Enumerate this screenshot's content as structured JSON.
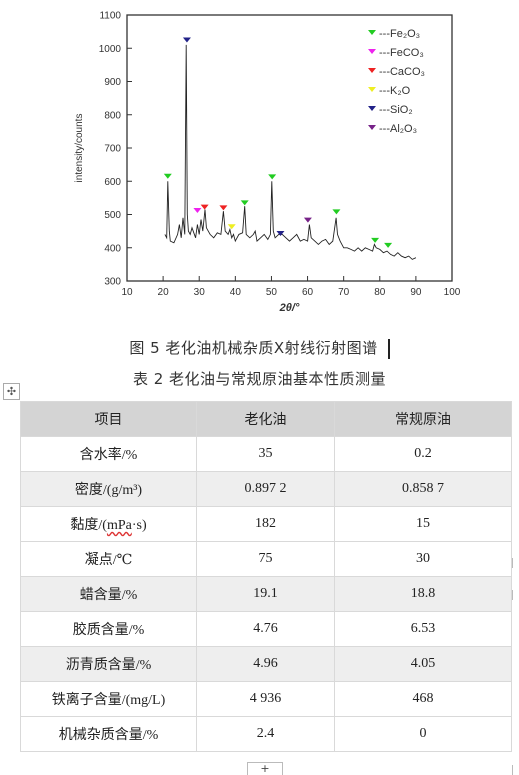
{
  "chart_data": {
    "type": "line",
    "xlabel": "2θ/°",
    "ylabel": "intensity/counts",
    "xlim": [
      10,
      100
    ],
    "ylim": [
      300,
      1100
    ],
    "xticks": [
      10,
      20,
      30,
      40,
      50,
      60,
      70,
      80,
      90,
      100
    ],
    "yticks": [
      300,
      400,
      500,
      600,
      700,
      800,
      900,
      1000,
      1100
    ],
    "grid": false,
    "legend_position": "top-right",
    "legend": [
      {
        "label": "---Fe₂O₃",
        "color": "#22cc22"
      },
      {
        "label": "---FeCO₃",
        "color": "#ee22ee"
      },
      {
        "label": "---CaCO₃",
        "color": "#ee2222"
      },
      {
        "label": "---K₂O",
        "color": "#eeee22"
      },
      {
        "label": "---SiO₂",
        "color": "#222288"
      },
      {
        "label": "---Al₂O₃",
        "color": "#772288"
      }
    ],
    "series": [
      {
        "x": [
          20.5,
          21,
          21.3,
          21.7,
          22,
          23,
          24,
          24.5,
          25,
          25.5,
          26,
          26.4,
          26.7,
          27,
          27.5,
          28,
          29,
          29.5,
          30,
          30.5,
          31,
          31.6,
          32,
          33,
          34,
          35,
          36,
          36.7,
          37.2,
          38,
          38.5,
          39,
          39.5,
          40,
          41,
          42,
          42.6,
          43,
          44,
          45,
          45.5,
          46,
          47,
          48,
          49,
          49.7,
          50.1,
          50.5,
          51,
          52,
          53,
          54,
          55,
          56,
          57,
          58,
          59,
          60,
          60.5,
          61,
          62,
          63,
          64,
          65,
          66,
          67,
          67.9,
          68.3,
          69,
          70,
          71,
          72,
          73,
          74,
          75,
          76,
          77,
          78,
          78.5,
          79,
          80,
          81,
          82,
          83,
          84,
          85,
          86,
          87,
          88,
          89,
          90
        ],
        "y": [
          440,
          430,
          600,
          450,
          420,
          415,
          440,
          470,
          430,
          490,
          440,
          1010,
          500,
          450,
          440,
          460,
          430,
          470,
          440,
          485,
          450,
          515,
          460,
          440,
          430,
          445,
          440,
          510,
          450,
          440,
          455,
          430,
          440,
          420,
          440,
          445,
          525,
          440,
          430,
          440,
          450,
          420,
          430,
          440,
          425,
          440,
          600,
          450,
          430,
          440,
          440,
          430,
          420,
          430,
          440,
          420,
          425,
          420,
          470,
          430,
          420,
          410,
          420,
          425,
          410,
          420,
          490,
          440,
          420,
          400,
          400,
          395,
          390,
          400,
          390,
          400,
          395,
          390,
          410,
          400,
          395,
          385,
          390,
          380,
          375,
          385,
          375,
          370,
          375,
          365,
          370
        ]
      }
    ],
    "markers": [
      {
        "x": 21.3,
        "y": 615,
        "color": "#22cc22"
      },
      {
        "x": 26.6,
        "y": 1025,
        "color": "#222288"
      },
      {
        "x": 29.5,
        "y": 512,
        "color": "#ee22ee"
      },
      {
        "x": 31.5,
        "y": 522,
        "color": "#ee2222"
      },
      {
        "x": 36.7,
        "y": 520,
        "color": "#ee2222"
      },
      {
        "x": 39,
        "y": 463,
        "color": "#eeee22"
      },
      {
        "x": 42.6,
        "y": 535,
        "color": "#22cc22"
      },
      {
        "x": 50.2,
        "y": 613,
        "color": "#22cc22"
      },
      {
        "x": 52.5,
        "y": 443,
        "color": "#222288"
      },
      {
        "x": 60.1,
        "y": 483,
        "color": "#772288"
      },
      {
        "x": 68,
        "y": 508,
        "color": "#22cc22"
      },
      {
        "x": 78.7,
        "y": 422,
        "color": "#22cc22"
      },
      {
        "x": 82.3,
        "y": 407,
        "color": "#22cc22"
      }
    ]
  },
  "figure_caption": "图 5  老化油机械杂质X射线衍射图谱",
  "table_caption": "表 2  老化油与常规原油基本性质测量",
  "table": {
    "headers": [
      "项目",
      "老化油",
      "常规原油"
    ],
    "rows": [
      {
        "item": "含水率/%",
        "aged": "35",
        "conventional": "0.2"
      },
      {
        "item": "密度/(g/m³)",
        "aged": "0.897 2",
        "conventional": "0.858 7"
      },
      {
        "item_pre": "黏度/(",
        "item_mark": "mPa",
        "item_post": "·s)",
        "aged": "182",
        "conventional": "15"
      },
      {
        "item": "凝点/℃",
        "aged": "75",
        "conventional": "30"
      },
      {
        "item": "蜡含量/%",
        "aged": "19.1",
        "conventional": "18.8"
      },
      {
        "item": "胶质含量/%",
        "aged": "4.76",
        "conventional": "6.53"
      },
      {
        "item": "沥青质含量/%",
        "aged": "4.96",
        "conventional": "4.05"
      },
      {
        "item": "铁离子含量/(mg/L)",
        "aged": "4 936",
        "conventional": "468"
      },
      {
        "item": "机械杂质含量/%",
        "aged": "2.4",
        "conventional": "0"
      }
    ]
  },
  "controls": {
    "move_handle_icon": "✣",
    "add_row_icon": "+"
  }
}
